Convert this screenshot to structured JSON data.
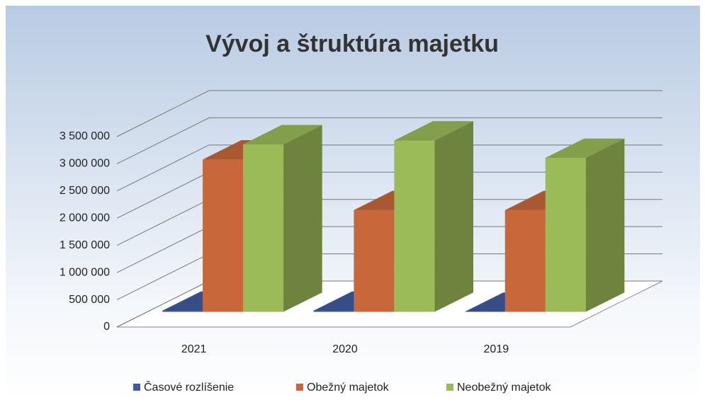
{
  "chart_data": {
    "type": "bar",
    "title": "Vývoj a štruktúra majetku",
    "categories": [
      "2021",
      "2020",
      "2019"
    ],
    "series": [
      {
        "name": "Časové rozlíšenie",
        "color": "#3f5aa0",
        "values": [
          20000,
          20000,
          0
        ]
      },
      {
        "name": "Obežný majetok",
        "color": "#c8683a",
        "values": [
          2800000,
          1870000,
          1870000
        ]
      },
      {
        "name": "Neobežný majetok",
        "color": "#9bbb59",
        "values": [
          3080000,
          3150000,
          2830000
        ]
      }
    ],
    "ylim": [
      0,
      3500000
    ],
    "yticks": [
      0,
      {
        "value": 500000,
        "label": "500 000"
      },
      {
        "value": 1000000,
        "label": "1 000 000"
      },
      {
        "value": 1500000,
        "label": "1 500 000"
      },
      {
        "value": 2000000,
        "label": "2 000 000"
      },
      {
        "value": 2500000,
        "label": "2 500 000"
      },
      {
        "value": 3000000,
        "label": "3 000 000"
      },
      {
        "value": 3500000,
        "label": "3 500 000"
      }
    ],
    "grid": true,
    "legend": "bottom"
  }
}
